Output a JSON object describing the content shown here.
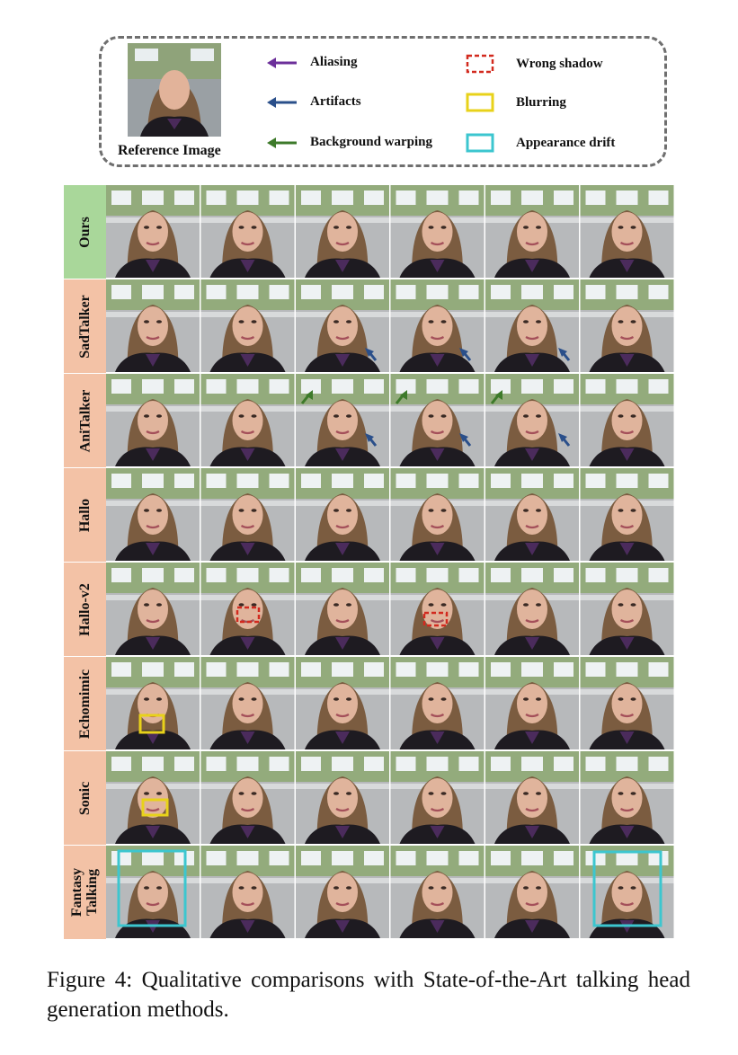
{
  "legend": {
    "reference_label": "Reference Image",
    "items": [
      {
        "label": "Aliasing",
        "marker": "arrow-icon",
        "color": "#6c2f9a"
      },
      {
        "label": "Artifacts",
        "marker": "arrow-icon",
        "color": "#2a4f8a"
      },
      {
        "label": "Background warping",
        "marker": "arrow-icon",
        "color": "#3d7a2a"
      },
      {
        "label": "Wrong shadow",
        "marker": "dashed-box-icon",
        "color": "#d22a1f"
      },
      {
        "label": "Blurring",
        "marker": "box-icon",
        "color": "#e8d21a"
      },
      {
        "label": "Appearance drift",
        "marker": "box-icon",
        "color": "#3cc6cf"
      }
    ]
  },
  "rows": [
    {
      "label": "Ours",
      "color": "#a9d79a"
    },
    {
      "label": "SadTalker",
      "color": "#f3c2a6"
    },
    {
      "label": "AniTalker",
      "color": "#f3c2a6"
    },
    {
      "label": "Hallo",
      "color": "#f3c2a6"
    },
    {
      "label": "Hallo-v2",
      "color": "#f3c2a6"
    },
    {
      "label": "Echomimic",
      "color": "#f3c2a6"
    },
    {
      "label": "Sonic",
      "color": "#f3c2a6"
    },
    {
      "label": "Fantasy Talking",
      "label_lines": [
        "Fantasy",
        "Talking"
      ],
      "color": "#f3c2a6"
    }
  ],
  "frames_per_row": 6,
  "caption": "Figure 4: Qualitative comparisons with State-of-the-Art talking head generation methods."
}
